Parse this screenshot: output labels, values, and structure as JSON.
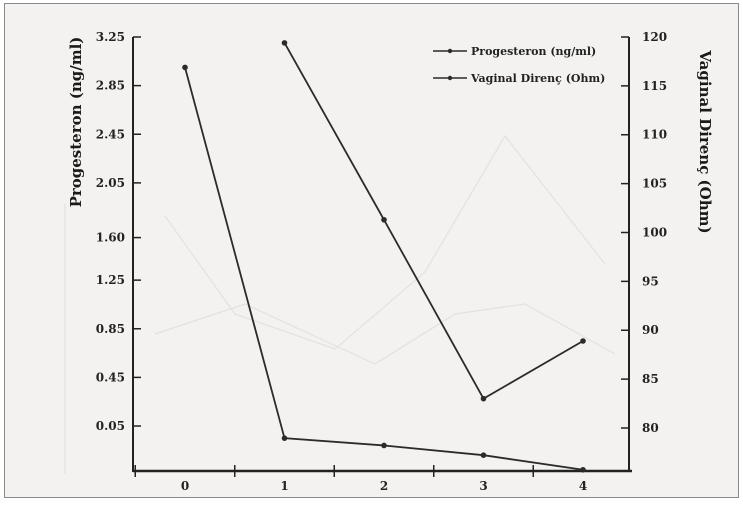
{
  "chart_data": {
    "type": "line",
    "title": "",
    "x": [
      0,
      1,
      2,
      3,
      4
    ],
    "xlabel": "",
    "xticks": [
      "0",
      "1",
      "2",
      "3",
      "4"
    ],
    "left_axis": {
      "label": "Progesteron (ng/ml)",
      "ticks": [
        "3.25",
        "2.85",
        "2.45",
        "2.05",
        "1.60",
        "1.25",
        "0.85",
        "0.45",
        "0.05"
      ],
      "tick_values": [
        3.25,
        2.85,
        2.45,
        2.05,
        1.6,
        1.25,
        0.85,
        0.45,
        0.05
      ],
      "ylim": [
        -0.32,
        3.25
      ]
    },
    "right_axis": {
      "label": "Vaginal Direnç (Ohm)",
      "ticks": [
        "120",
        "115",
        "110",
        "105",
        "100",
        "95",
        "90",
        "85",
        "80"
      ],
      "tick_values": [
        120,
        115,
        110,
        105,
        100,
        95,
        90,
        85,
        80
      ],
      "ylim": [
        75.6,
        120
      ]
    },
    "series": [
      {
        "name": "Progesteron (ng/ml)",
        "axis": "left",
        "x": [
          0,
          1,
          2,
          3,
          4
        ],
        "values": [
          3.0,
          -0.05,
          -0.11,
          -0.19,
          -0.31
        ]
      },
      {
        "name": "Vaginal Direnç (Ohm)",
        "axis": "right",
        "x": [
          1,
          2,
          3,
          4
        ],
        "values": [
          119.4,
          101.3,
          83.0,
          88.9
        ]
      }
    ],
    "legend_position": "top-right",
    "grid": false,
    "line_color": "#2b2b2b",
    "background_color": "#f3f2f0"
  }
}
